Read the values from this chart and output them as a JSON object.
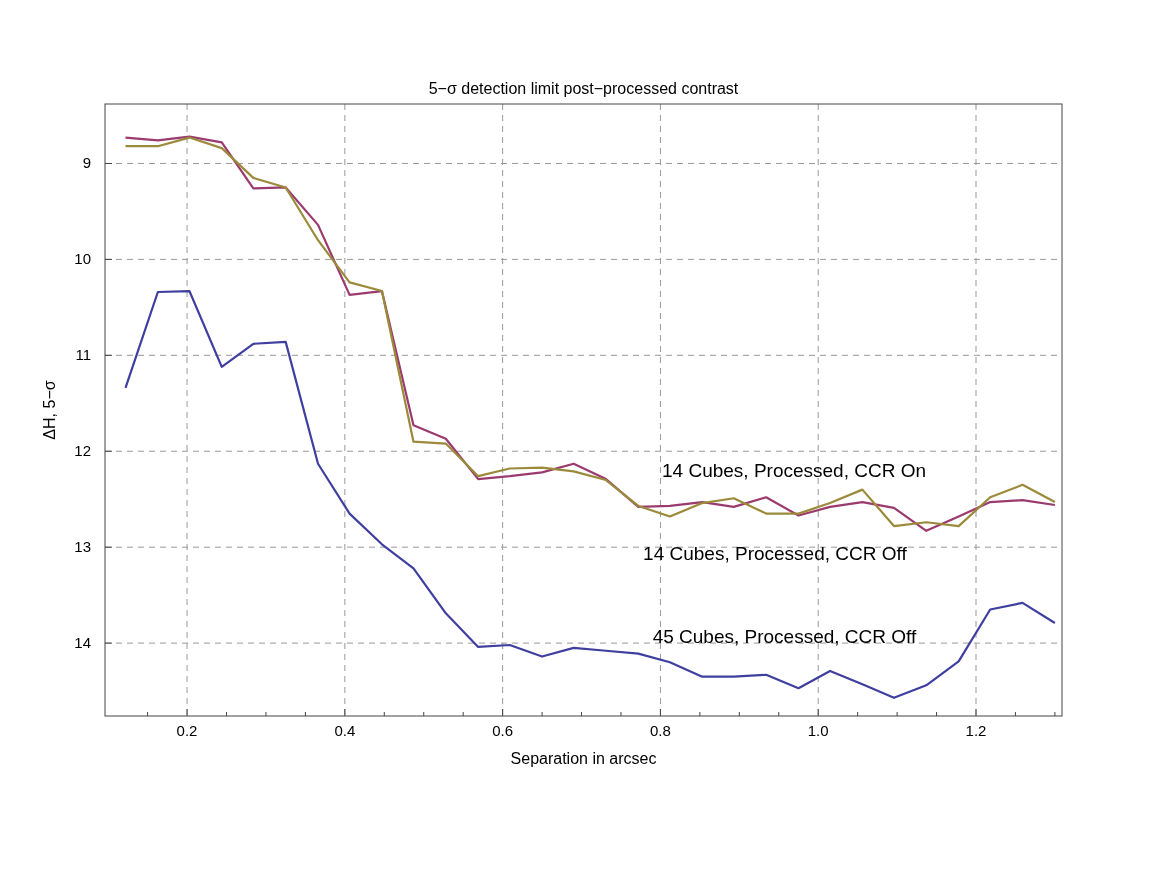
{
  "chart_data": {
    "type": "line",
    "title": "5−σ  detection limit post−processed contrast",
    "xlabel": "Separation in arcsec",
    "ylabel": "ΔH, 5−σ",
    "x": [
      0.122,
      0.163,
      0.203,
      0.244,
      0.284,
      0.325,
      0.366,
      0.406,
      0.447,
      0.487,
      0.528,
      0.569,
      0.609,
      0.65,
      0.69,
      0.731,
      0.772,
      0.812,
      0.853,
      0.893,
      0.934,
      0.975,
      1.015,
      1.056,
      1.096,
      1.137,
      1.178,
      1.218,
      1.259,
      1.3
    ],
    "series": [
      {
        "color": "#9b3a6e",
        "values": [
          8.73,
          8.76,
          8.72,
          8.78,
          9.26,
          9.25,
          9.64,
          10.37,
          10.33,
          11.73,
          11.87,
          12.29,
          12.26,
          12.22,
          12.13,
          12.29,
          12.58,
          12.57,
          12.53,
          12.58,
          12.48,
          12.67,
          12.58,
          12.53,
          12.59,
          12.83,
          12.68,
          12.53,
          12.51,
          12.56
        ]
      },
      {
        "color": "#9a8a3a",
        "values": [
          8.82,
          8.82,
          8.73,
          8.84,
          9.15,
          9.25,
          9.8,
          10.24,
          10.33,
          11.9,
          11.92,
          12.26,
          12.18,
          12.17,
          12.21,
          12.3,
          12.57,
          12.68,
          12.54,
          12.49,
          12.65,
          12.65,
          12.54,
          12.4,
          12.78,
          12.74,
          12.78,
          12.48,
          12.35,
          12.53
        ]
      },
      {
        "color": "#3f3fa0",
        "values": [
          11.34,
          10.34,
          10.33,
          11.12,
          10.88,
          10.86,
          12.13,
          12.65,
          12.97,
          13.22,
          13.69,
          14.04,
          14.02,
          14.14,
          14.05,
          14.08,
          14.11,
          14.2,
          14.35,
          14.35,
          14.33,
          14.47,
          14.29,
          14.43,
          14.57,
          14.44,
          14.19,
          13.65,
          13.58,
          13.79
        ]
      }
    ],
    "xlim": [
      0.096,
      1.309
    ],
    "ylim": [
      14.76,
      8.38
    ],
    "xticks": [
      {
        "value": 0.15,
        "label": null
      },
      {
        "value": 0.2,
        "label": "0.2"
      },
      {
        "value": 0.25,
        "label": null
      },
      {
        "value": 0.3,
        "label": null
      },
      {
        "value": 0.35,
        "label": null
      },
      {
        "value": 0.4,
        "label": "0.4"
      },
      {
        "value": 0.45,
        "label": null
      },
      {
        "value": 0.5,
        "label": null
      },
      {
        "value": 0.55,
        "label": null
      },
      {
        "value": 0.6,
        "label": "0.6"
      },
      {
        "value": 0.65,
        "label": null
      },
      {
        "value": 0.7,
        "label": null
      },
      {
        "value": 0.75,
        "label": null
      },
      {
        "value": 0.8,
        "label": "0.8"
      },
      {
        "value": 0.85,
        "label": null
      },
      {
        "value": 0.9,
        "label": null
      },
      {
        "value": 0.95,
        "label": null
      },
      {
        "value": 1,
        "label": "1.0"
      },
      {
        "value": 1.05,
        "label": null
      },
      {
        "value": 1.1,
        "label": null
      },
      {
        "value": 1.15,
        "label": null
      },
      {
        "value": 1.2,
        "label": "1.2"
      },
      {
        "value": 1.25,
        "label": null
      },
      {
        "value": 1.3,
        "label": null
      }
    ],
    "yticks": [
      9,
      10,
      11,
      12,
      13,
      14
    ],
    "grid": true,
    "marker": "none",
    "line_style": "solid",
    "annotations": [
      "14 Cubes, Processed, CCR On",
      "14 Cubes, Processed, CCR Off",
      "45 Cubes, Processed, CCR Off"
    ]
  }
}
